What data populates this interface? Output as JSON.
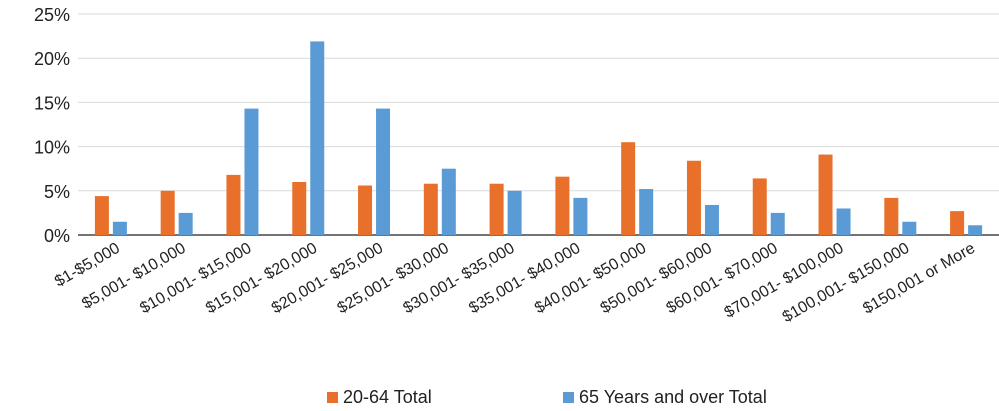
{
  "chart_data": {
    "type": "bar",
    "categories": [
      "$1-$5,000",
      "$5,001- $10,000",
      "$10,001- $15,000",
      "$15,001- $20,000",
      "$20,001- $25,000",
      "$25,001- $30,000",
      "$30,001- $35,000",
      "$35,001- $40,000",
      "$40,001- $50,000",
      "$50,001- $60,000",
      "$60,001- $70,000",
      "$70,001- $100,000",
      "$100,001- $150,000",
      "$150,001 or More"
    ],
    "series": [
      {
        "name": "20-64 Total",
        "color": "#E8702A",
        "values": [
          4.4,
          5.0,
          6.8,
          6.0,
          5.6,
          5.8,
          5.8,
          6.6,
          10.5,
          8.4,
          6.4,
          9.1,
          4.2,
          2.7
        ]
      },
      {
        "name": "65 Years and over Total",
        "color": "#5B9BD5",
        "values": [
          1.5,
          2.5,
          14.3,
          21.9,
          14.3,
          7.5,
          5.0,
          4.2,
          5.2,
          3.4,
          2.5,
          3.0,
          1.5,
          1.1
        ]
      }
    ],
    "ylim": [
      0,
      25
    ],
    "yticks": [
      "0%",
      "5%",
      "10%",
      "15%",
      "20%",
      "25%"
    ],
    "ytick_values": [
      0,
      5,
      10,
      15,
      20,
      25
    ],
    "grid": true,
    "legend_position": "bottom"
  }
}
